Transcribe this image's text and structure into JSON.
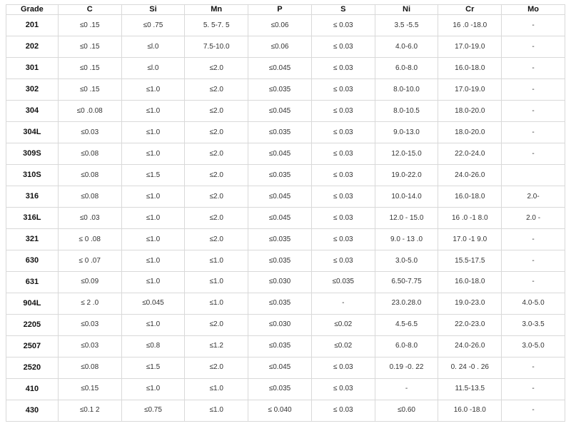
{
  "table": {
    "type": "table",
    "background_color": "#ffffff",
    "border_color": "#d9d9d9",
    "header_font_weight": "bold",
    "header_fontsize": 11,
    "cell_fontsize": 10,
    "text_color": "#333333",
    "grade_col_width_pct": 9.3,
    "data_col_width_pct": 11.34,
    "columns": [
      "Grade",
      "C",
      "Si",
      "Mn",
      "P",
      "S",
      "Ni",
      "Cr",
      "Mo"
    ],
    "rows": [
      [
        "201",
        "≤0 .15",
        "≤0 .75",
        "5. 5-7. 5",
        "≤0.06",
        "≤ 0.03",
        "3.5 -5.5",
        "16 .0 -18.0",
        "-"
      ],
      [
        "202",
        "≤0 .15",
        "≤l.0",
        "7.5-10.0",
        "≤0.06",
        "≤ 0.03",
        "4.0-6.0",
        "17.0-19.0",
        "-"
      ],
      [
        "301",
        "≤0 .15",
        "≤l.0",
        "≤2.0",
        "≤0.045",
        "≤ 0.03",
        "6.0-8.0",
        "16.0-18.0",
        "-"
      ],
      [
        "302",
        "≤0 .15",
        "≤1.0",
        "≤2.0",
        "≤0.035",
        "≤ 0.03",
        "8.0-10.0",
        "17.0-19.0",
        "-"
      ],
      [
        "304",
        "≤0 .0.08",
        "≤1.0",
        "≤2.0",
        "≤0.045",
        "≤ 0.03",
        "8.0-10.5",
        "18.0-20.0",
        "-"
      ],
      [
        "304L",
        "≤0.03",
        "≤1.0",
        "≤2.0",
        "≤0.035",
        "≤ 0.03",
        "9.0-13.0",
        "18.0-20.0",
        "-"
      ],
      [
        "309S",
        "≤0.08",
        "≤1.0",
        "≤2.0",
        "≤0.045",
        "≤ 0.03",
        "12.0-15.0",
        "22.0-24.0",
        "-"
      ],
      [
        "310S",
        "≤0.08",
        "≤1.5",
        "≤2.0",
        "≤0.035",
        "≤ 0.03",
        "19.0-22.0",
        "24.0-26.0",
        ""
      ],
      [
        "316",
        "≤0.08",
        "≤1.0",
        "≤2.0",
        "≤0.045",
        "≤ 0.03",
        "10.0-14.0",
        "16.0-18.0",
        "2.0-"
      ],
      [
        "316L",
        "≤0 .03",
        "≤1.0",
        "≤2.0",
        "≤0.045",
        "≤ 0.03",
        "12.0 - 15.0",
        "16 .0 -1 8.0",
        "2.0 -"
      ],
      [
        "321",
        "≤ 0 .08",
        "≤1.0",
        "≤2.0",
        "≤0.035",
        "≤ 0.03",
        "9.0 - 13 .0",
        "17.0 -1 9.0",
        "-"
      ],
      [
        "630",
        "≤ 0 .07",
        "≤1.0",
        "≤1.0",
        "≤0.035",
        "≤ 0.03",
        "3.0-5.0",
        "15.5-17.5",
        "-"
      ],
      [
        "631",
        "≤0.09",
        "≤1.0",
        "≤1.0",
        "≤0.030",
        "≤0.035",
        "6.50-7.75",
        "16.0-18.0",
        "-"
      ],
      [
        "904L",
        "≤ 2 .0",
        "≤0.045",
        "≤1.0",
        "≤0.035",
        "-",
        "23.0.28.0",
        "19.0-23.0",
        "4.0-5.0"
      ],
      [
        "2205",
        "≤0.03",
        "≤1.0",
        "≤2.0",
        "≤0.030",
        "≤0.02",
        "4.5-6.5",
        "22.0-23.0",
        "3.0-3.5"
      ],
      [
        "2507",
        "≤0.03",
        "≤0.8",
        "≤1.2",
        "≤0.035",
        "≤0.02",
        "6.0-8.0",
        "24.0-26.0",
        "3.0-5.0"
      ],
      [
        "2520",
        "≤0.08",
        "≤1.5",
        "≤2.0",
        "≤0.045",
        "≤ 0.03",
        "0.19 -0. 22",
        "0. 24 -0 . 26",
        "-"
      ],
      [
        "410",
        "≤0.15",
        "≤1.0",
        "≤1.0",
        "≤0.035",
        "≤ 0.03",
        "-",
        "11.5-13.5",
        "-"
      ],
      [
        "430",
        "≤0.1 2",
        "≤0.75",
        "≤1.0",
        "≤ 0.040",
        "≤ 0.03",
        "≤0.60",
        "16.0 -18.0",
        "-"
      ]
    ]
  }
}
